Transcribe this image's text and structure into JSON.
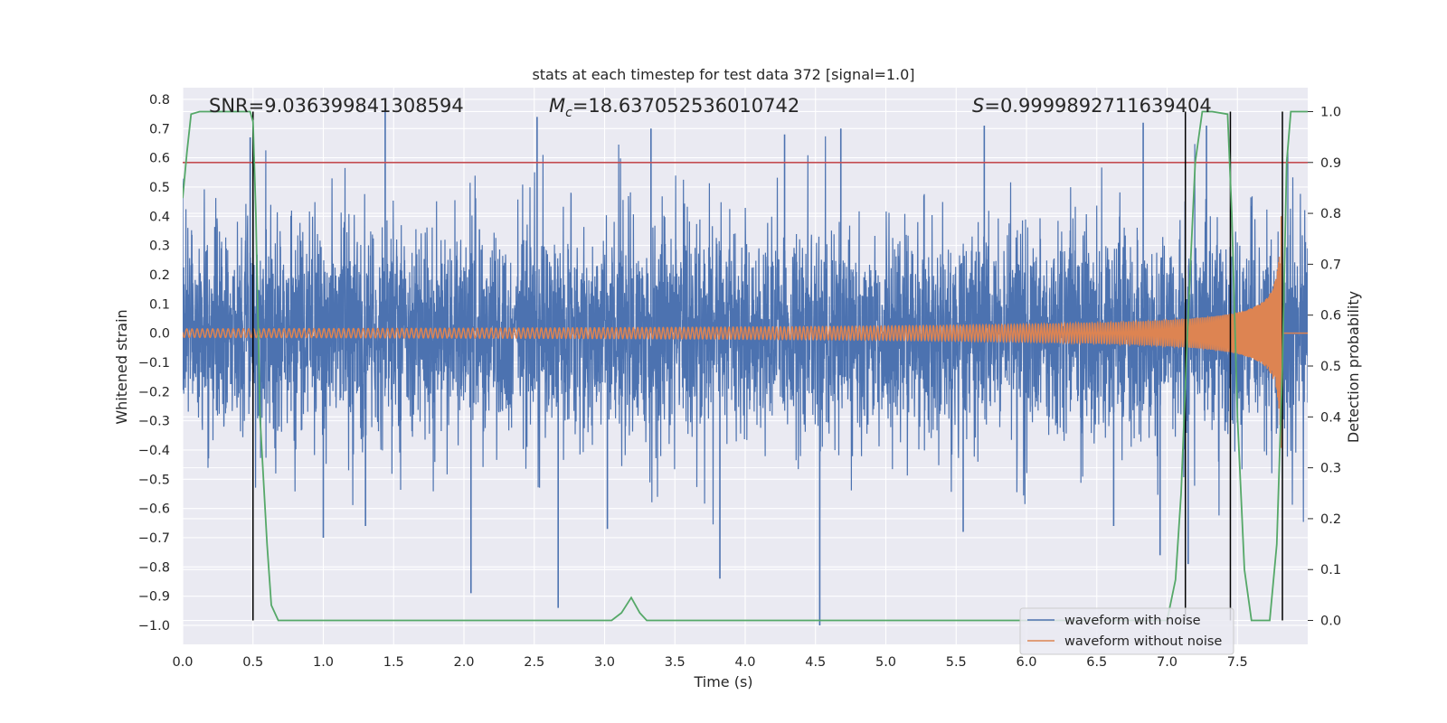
{
  "chart_data": {
    "type": "line",
    "title": "stats at each timestep for test data 372 [signal=1.0]",
    "xlabel": "Time (s)",
    "ylabel": "Whitened strain",
    "y2label": "Detection probability",
    "xlim": [
      0.0,
      8.0
    ],
    "ylim": [
      -1.065,
      0.84
    ],
    "y2lim": [
      -0.047,
      1.047
    ],
    "xticks": [
      0.0,
      0.5,
      1.0,
      1.5,
      2.0,
      2.5,
      3.0,
      3.5,
      4.0,
      4.5,
      5.0,
      5.5,
      6.0,
      6.5,
      7.0,
      7.5
    ],
    "xtick_labels": [
      "0.0",
      "0.5",
      "1.0",
      "1.5",
      "2.0",
      "2.5",
      "3.0",
      "3.5",
      "4.0",
      "4.5",
      "5.0",
      "5.5",
      "6.0",
      "6.5",
      "7.0",
      "7.5"
    ],
    "yticks": [
      -1.0,
      -0.9,
      -0.8,
      -0.7,
      -0.6,
      -0.5,
      -0.4,
      -0.3,
      -0.2,
      -0.1,
      0.0,
      0.1,
      0.2,
      0.3,
      0.4,
      0.5,
      0.6,
      0.7,
      0.8
    ],
    "ytick_labels": [
      "−1.0",
      "−0.9",
      "−0.8",
      "−0.7",
      "−0.6",
      "−0.5",
      "−0.4",
      "−0.3",
      "−0.2",
      "−0.1",
      "0.0",
      "0.1",
      "0.2",
      "0.3",
      "0.4",
      "0.5",
      "0.6",
      "0.7",
      "0.8"
    ],
    "y2ticks": [
      0.0,
      0.1,
      0.2,
      0.3,
      0.4,
      0.5,
      0.6,
      0.7,
      0.8,
      0.9,
      1.0
    ],
    "y2tick_labels": [
      "0.0",
      "0.1",
      "0.2",
      "0.3",
      "0.4",
      "0.5",
      "0.6",
      "0.7",
      "0.8",
      "0.9",
      "1.0"
    ],
    "annotations": {
      "snr_text": "SNR=9.036399841308594",
      "mc_symbol": "M",
      "mc_subscript": "c",
      "mc_value": "=18.637052536010742",
      "s_symbol": "S",
      "s_value": "=0.9999892711639404"
    },
    "legend": {
      "location": "lower-right",
      "entries": [
        "waveform with noise",
        "waveform without noise"
      ]
    },
    "threshold_line": {
      "y2": 0.9,
      "color": "#c44e52"
    },
    "vertical_lines_x": [
      0.5,
      7.13,
      7.45,
      7.82
    ],
    "series": [
      {
        "name": "waveform with noise",
        "color": "#4c72b0",
        "noise_envelope": 0.3,
        "spikes": [
          [
            0.48,
            0.67
          ],
          [
            1.44,
            0.77
          ],
          [
            2.52,
            0.74
          ],
          [
            3.33,
            0.7
          ],
          [
            4.28,
            0.68
          ],
          [
            4.68,
            0.7
          ],
          [
            5.7,
            0.71
          ],
          [
            6.83,
            0.72
          ],
          [
            7.28,
            0.71
          ],
          [
            2.05,
            -0.89
          ],
          [
            2.67,
            -0.94
          ],
          [
            3.02,
            -0.67
          ],
          [
            3.82,
            -0.84
          ],
          [
            4.53,
            -1.0
          ],
          [
            1.0,
            -0.7
          ],
          [
            1.3,
            -0.66
          ],
          [
            6.95,
            -0.76
          ],
          [
            7.15,
            -0.79
          ],
          [
            5.55,
            -0.68
          ],
          [
            6.62,
            -0.66
          ]
        ]
      },
      {
        "name": "waveform without noise",
        "color": "#dd8452",
        "description": "chirp signal growing toward merger near t=7.82 s",
        "merger_time": 7.82,
        "max_amplitude": 0.52
      },
      {
        "name": "detection probability",
        "axis": "y2",
        "color": "#55a868",
        "x": [
          0.0,
          0.03,
          0.06,
          0.12,
          0.48,
          0.5,
          0.52,
          0.55,
          0.6,
          0.63,
          0.68,
          1.0,
          2.0,
          3.0,
          3.05,
          3.12,
          3.19,
          3.25,
          3.3,
          3.4,
          6.0,
          7.0,
          7.06,
          7.1,
          7.15,
          7.2,
          7.25,
          7.32,
          7.43,
          7.46,
          7.5,
          7.55,
          7.6,
          7.73,
          7.78,
          7.82,
          7.85,
          7.88,
          7.92,
          8.0
        ],
        "y": [
          0.83,
          0.92,
          0.995,
          1.0,
          1.0,
          0.98,
          0.8,
          0.4,
          0.15,
          0.03,
          0.0,
          0.0,
          0.0,
          0.0,
          0.0,
          0.015,
          0.045,
          0.015,
          0.0,
          0.0,
          0.0,
          0.0,
          0.08,
          0.25,
          0.6,
          0.9,
          1.0,
          1.0,
          0.995,
          0.8,
          0.4,
          0.1,
          0.0,
          0.0,
          0.15,
          0.5,
          0.9,
          1.0,
          1.0,
          1.0
        ]
      }
    ]
  }
}
